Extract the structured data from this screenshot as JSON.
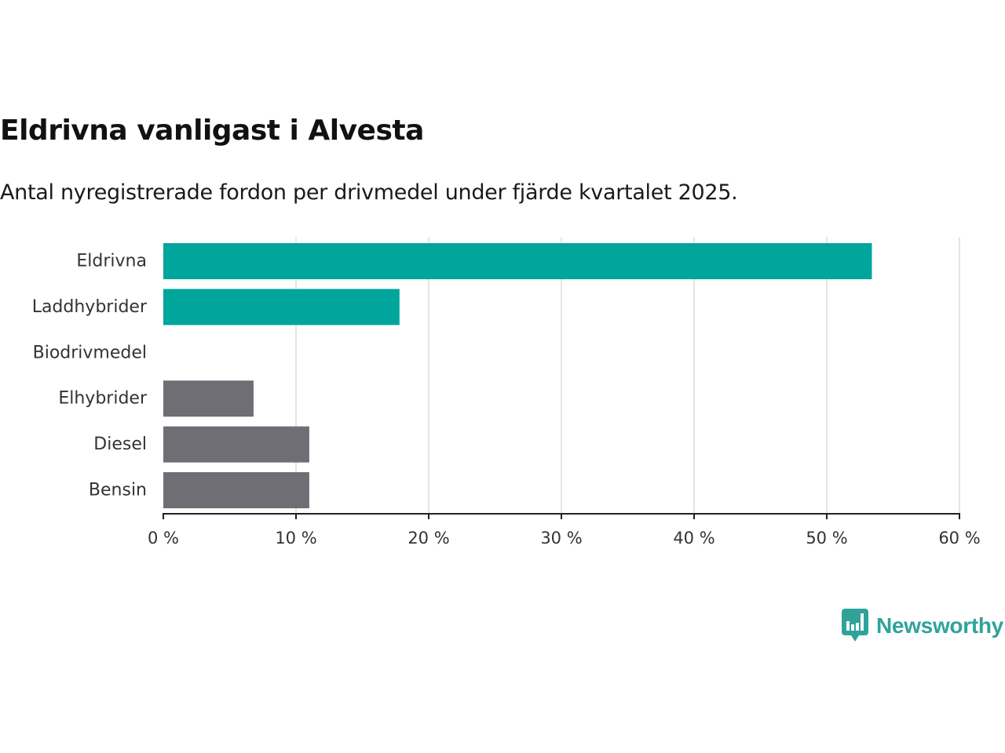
{
  "chart_data": {
    "type": "bar",
    "orientation": "horizontal",
    "title": "Eldrivna vanligast i Alvesta",
    "subtitle": "Antal nyregistrerade fordon per drivmedel under fjärde kvartalet 2025.",
    "categories": [
      "Eldrivna",
      "Laddhybrider",
      "Biodrivmedel",
      "Elhybrider",
      "Diesel",
      "Bensin"
    ],
    "values": [
      53.4,
      17.8,
      0,
      6.8,
      11.0,
      11.0
    ],
    "colors": [
      "#00a59b",
      "#00a59b",
      "#00a59b",
      "#6f6e74",
      "#6f6e74",
      "#6f6e74"
    ],
    "xlim": [
      0,
      60
    ],
    "x_ticks": [
      0,
      10,
      20,
      30,
      40,
      50,
      60
    ],
    "x_tick_labels": [
      "0 %",
      "10 %",
      "20 %",
      "30 %",
      "40 %",
      "50 %",
      "60 %"
    ],
    "xlabel": "",
    "ylabel": "",
    "grid": true,
    "legend": "none"
  },
  "branding": {
    "logo_text": "Newsworthy",
    "logo_color": "#2fa39a"
  }
}
